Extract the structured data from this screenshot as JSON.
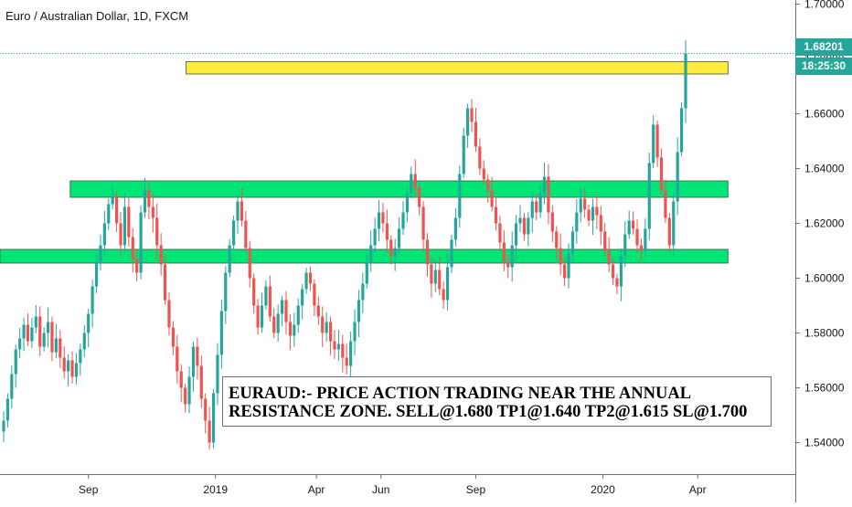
{
  "chart_data": {
    "type": "candlestick",
    "title": "Euro / Australian Dollar, 1D, FXCM",
    "x_tick_labels": [
      "Sep",
      "2019",
      "Apr",
      "Jun",
      "Sep",
      "2020",
      "Apr"
    ],
    "y_tick_labels": [
      "1.70000",
      "1.68000",
      "1.66000",
      "1.64000",
      "1.62000",
      "1.60000",
      "1.58000",
      "1.56000",
      "1.54000"
    ],
    "y_ticks": [
      1.7,
      1.68,
      1.66,
      1.64,
      1.62,
      1.6,
      1.58,
      1.56,
      1.54
    ],
    "ylim": [
      1.5285,
      1.7015
    ],
    "current_price": "1.68201",
    "countdown": "18:25:30",
    "grid": false,
    "colors": {
      "up": "#26a69a",
      "down": "#ef5350",
      "price_line": "#26a69a"
    },
    "series": [
      {
        "values": [
          1.548,
          1.556,
          1.565,
          1.574,
          1.578,
          1.583,
          1.577,
          1.582,
          1.586,
          1.575,
          1.58,
          1.584,
          1.573,
          1.578,
          1.571,
          1.566,
          1.57,
          1.564,
          1.569,
          1.574,
          1.58,
          1.587,
          1.597,
          1.606,
          1.612,
          1.62,
          1.627,
          1.63,
          1.62,
          1.612,
          1.626,
          1.615,
          1.607,
          1.602,
          1.624,
          1.632,
          1.626,
          1.622,
          1.612,
          1.605,
          1.592,
          1.582,
          1.575,
          1.566,
          1.56,
          1.554,
          1.564,
          1.575,
          1.568,
          1.556,
          1.548,
          1.54,
          1.558,
          1.572,
          1.588,
          1.602,
          1.612,
          1.621,
          1.628,
          1.621,
          1.611,
          1.6,
          1.59,
          1.582,
          1.59,
          1.597,
          1.586,
          1.58,
          1.587,
          1.592,
          1.584,
          1.579,
          1.583,
          1.59,
          1.596,
          1.602,
          1.598,
          1.59,
          1.586,
          1.58,
          1.584,
          1.577,
          1.574,
          1.576,
          1.571,
          1.568,
          1.577,
          1.584,
          1.592,
          1.598,
          1.606,
          1.612,
          1.618,
          1.624,
          1.62,
          1.614,
          1.608,
          1.611,
          1.618,
          1.624,
          1.631,
          1.638,
          1.633,
          1.626,
          1.614,
          1.605,
          1.598,
          1.603,
          1.596,
          1.592,
          1.604,
          1.614,
          1.622,
          1.638,
          1.652,
          1.662,
          1.657,
          1.648,
          1.64,
          1.636,
          1.632,
          1.626,
          1.62,
          1.613,
          1.606,
          1.604,
          1.612,
          1.62,
          1.622,
          1.616,
          1.622,
          1.628,
          1.624,
          1.631,
          1.637,
          1.624,
          1.617,
          1.611,
          1.605,
          1.6,
          1.609,
          1.617,
          1.624,
          1.629,
          1.625,
          1.621,
          1.626,
          1.623,
          1.617,
          1.61,
          1.605,
          1.6,
          1.597,
          1.608,
          1.616,
          1.621,
          1.618,
          1.612,
          1.61,
          1.618,
          1.642,
          1.656,
          1.644,
          1.632,
          1.622,
          1.612,
          1.628,
          1.646,
          1.662,
          1.682
        ]
      }
    ],
    "annotations": {
      "resistance_zone_yellow": [
        1.6745,
        1.679
      ],
      "zone_green_upper": [
        1.6295,
        1.6355
      ],
      "zone_green_lower": [
        1.6055,
        1.6105
      ]
    },
    "note_lines": [
      "EURAUD:- PRICE ACTION TRADING NEAR THE ANNUAL",
      "RESISTANCE ZONE. SELL@1.680 TP1@1.640 TP2@1.615 SL@1.700"
    ]
  }
}
